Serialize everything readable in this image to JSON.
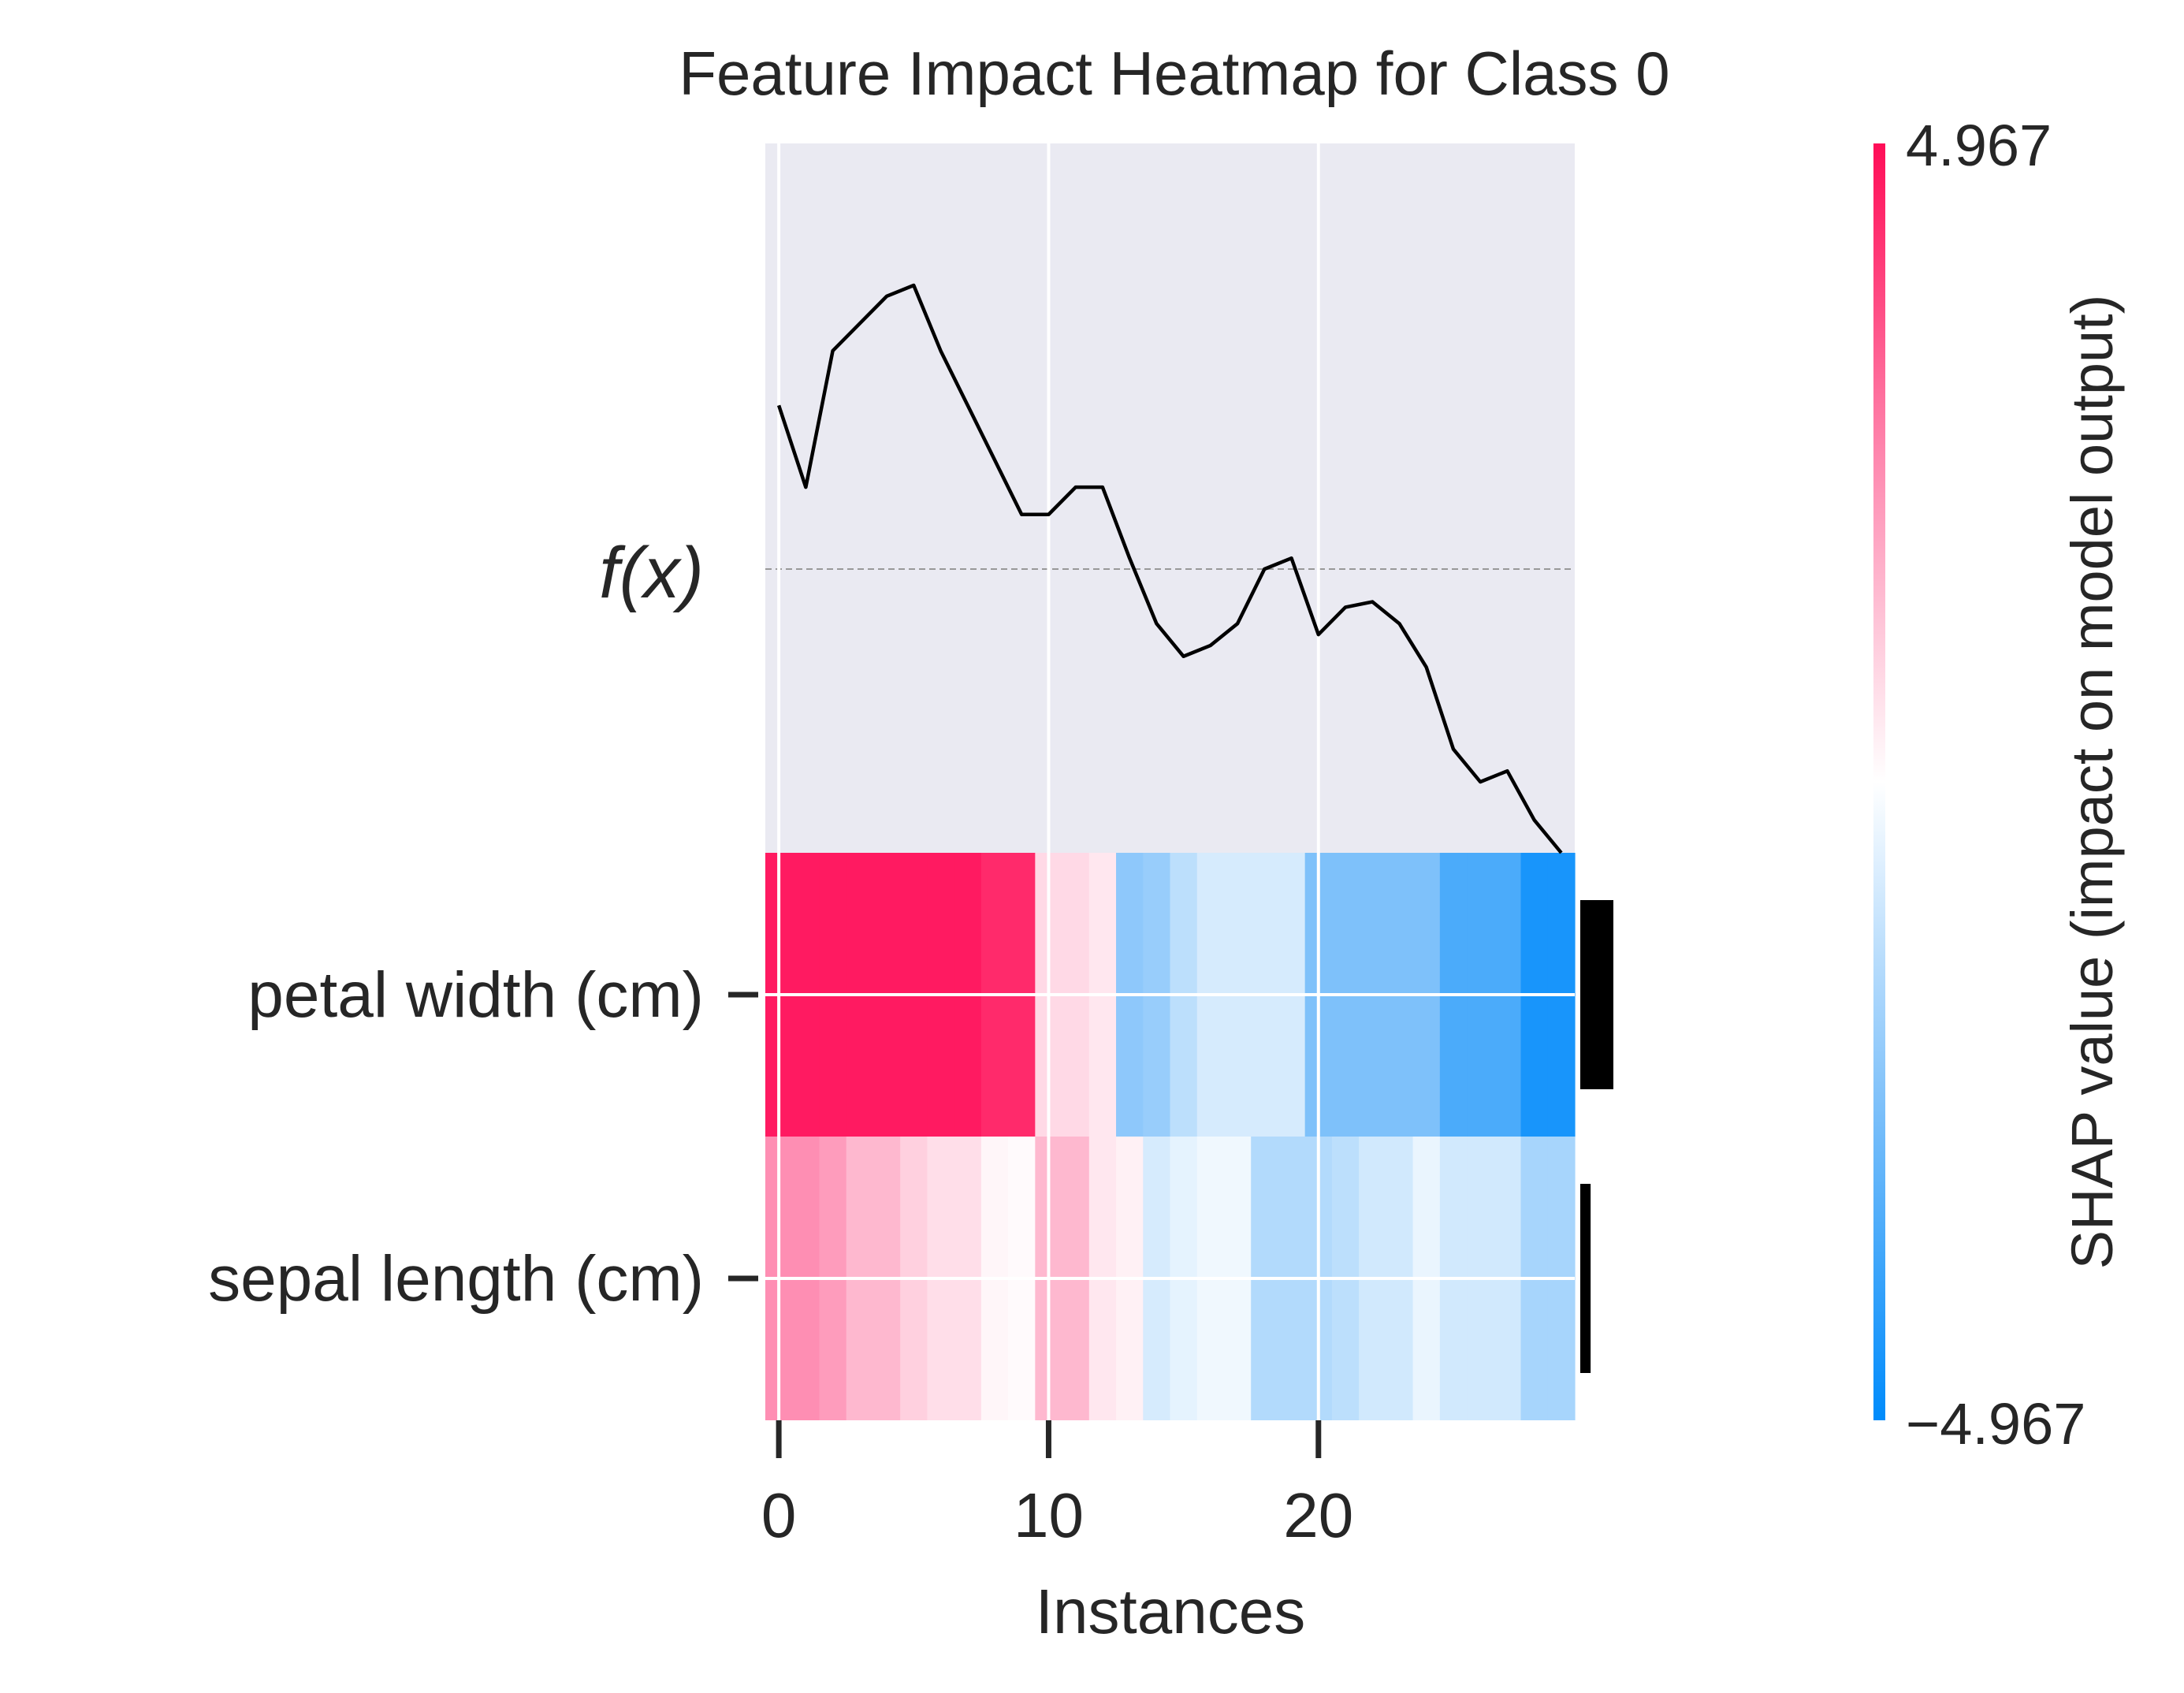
{
  "chart_data": {
    "type": "heatmap",
    "title": "Feature Impact Heatmap for Class 0",
    "xlabel": "Instances",
    "fx_label": "f(x)",
    "colorbar_label": "SHAP value (impact on model output)",
    "colorbar_max_label": "4.967",
    "colorbar_min_label": "−4.967",
    "color_range": [
      -4.967,
      4.967
    ],
    "colors": {
      "positive": "#ff0d57",
      "negative": "#1e88e5",
      "panel_bg": "#eaeaf2",
      "line": "#000000"
    },
    "x_ticks": [
      "0",
      "10",
      "20"
    ],
    "x_range": [
      -0.5,
      29.5
    ],
    "features": [
      "petal width (cm)",
      "sepal length (cm)"
    ],
    "feature_importance": [
      3.2,
      1.0
    ],
    "instances": 30,
    "fx_values": [
      -0.1,
      -0.25,
      0.0,
      0.05,
      0.1,
      0.12,
      0.0,
      -0.1,
      -0.2,
      -0.3,
      -0.3,
      -0.25,
      -0.25,
      -0.38,
      -0.5,
      -0.56,
      -0.54,
      -0.5,
      -0.4,
      -0.38,
      -0.52,
      -0.47,
      -0.46,
      -0.5,
      -0.58,
      -0.73,
      -0.79,
      -0.77,
      -0.86,
      -0.92
    ],
    "fx_values_note": "",
    "shap_values": {
      "petal width (cm)": [
        4.7,
        4.7,
        4.7,
        4.7,
        4.7,
        4.7,
        4.7,
        4.7,
        4.4,
        4.4,
        0.8,
        0.8,
        0.5,
        -2.2,
        -2.0,
        -1.3,
        -0.8,
        -0.8,
        -0.8,
        -0.8,
        -2.5,
        -2.5,
        -2.5,
        -2.5,
        -2.5,
        -3.5,
        -3.5,
        -3.5,
        -4.5,
        -4.5
      ],
      "sepal length (cm)": [
        2.4,
        2.4,
        2.1,
        1.5,
        1.5,
        1.0,
        0.7,
        0.7,
        0.2,
        0.1,
        1.5,
        1.5,
        0.5,
        0.3,
        -0.8,
        -0.5,
        -0.3,
        -0.3,
        -1.5,
        -1.5,
        -1.5,
        -1.3,
        -0.9,
        -0.9,
        -0.4,
        -0.9,
        -0.9,
        -0.9,
        -1.7,
        -1.7
      ]
    }
  }
}
